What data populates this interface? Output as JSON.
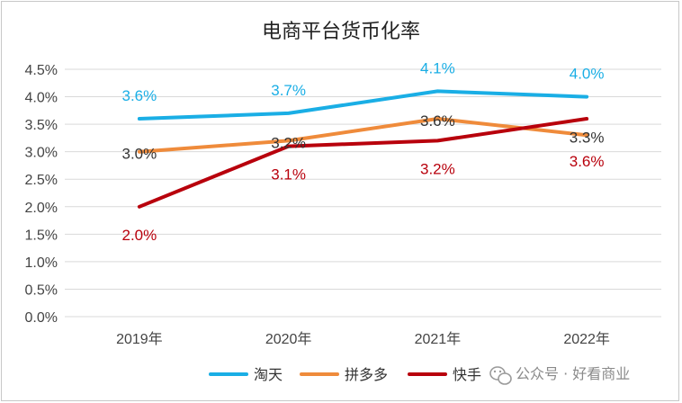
{
  "chart_data": {
    "type": "line",
    "title": "电商平台货币化率",
    "categories": [
      "2019年",
      "2020年",
      "2021年",
      "2022年"
    ],
    "ylim": [
      0,
      4.5
    ],
    "yticks": [
      "0.0%",
      "0.5%",
      "1.0%",
      "1.5%",
      "2.0%",
      "2.5%",
      "3.0%",
      "3.5%",
      "4.0%",
      "4.5%"
    ],
    "ylabel": "",
    "xlabel": "",
    "grid": true,
    "legend_position": "bottom-right",
    "series": [
      {
        "name": "淘天",
        "color": "#1aaee5",
        "values": [
          3.6,
          3.7,
          4.1,
          4.0
        ],
        "labels": [
          "3.6%",
          "3.7%",
          "4.1%",
          "4.0%"
        ]
      },
      {
        "name": "拼多多",
        "color": "#ef8b3b",
        "values": [
          3.0,
          3.2,
          3.6,
          3.3
        ],
        "labels": [
          "3.0%",
          "3.2%",
          "3.6%",
          "3.3%"
        ]
      },
      {
        "name": "快手",
        "color": "#b8000c",
        "values": [
          2.0,
          3.1,
          3.2,
          3.6
        ],
        "labels": [
          "2.0%",
          "3.1%",
          "3.2%",
          "3.6%"
        ]
      }
    ]
  },
  "watermark": {
    "text": "公众号 · 好看商业",
    "icon": "wechat-icon"
  }
}
